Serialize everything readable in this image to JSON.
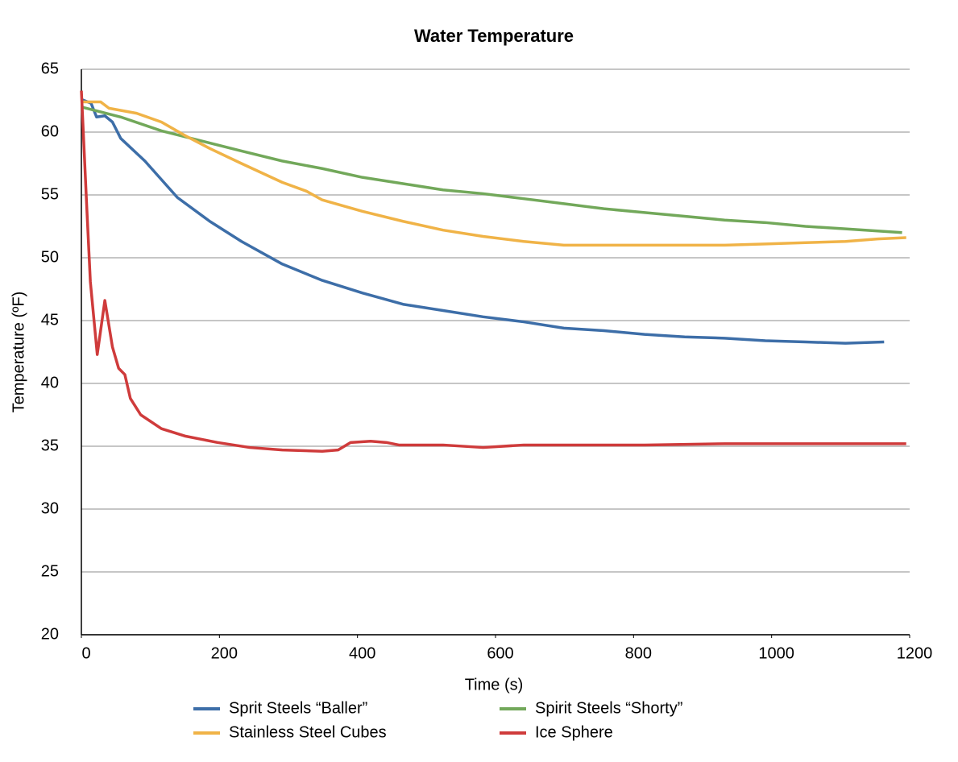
{
  "chart_data": {
    "type": "line",
    "title": "Water Temperature",
    "x_label": "Time (s)",
    "y_label": "Temperature (ºF)",
    "xlim": [
      0,
      1200
    ],
    "xticks": [
      0,
      200,
      400,
      600,
      800,
      1000,
      1200
    ],
    "ylim": [
      20,
      65
    ],
    "yticks": [
      20,
      25,
      30,
      35,
      40,
      45,
      50,
      55,
      60,
      65
    ],
    "grid": true,
    "legend": "bottom",
    "series": [
      {
        "name": "Sprit Steels “Baller”",
        "color": "#3d6ea8",
        "x": [
          0,
          14,
          22,
          34,
          45,
          57,
          92,
          139,
          186,
          232,
          291,
          349,
          407,
          466,
          524,
          582,
          641,
          699,
          757,
          816,
          874,
          932,
          991,
          1049,
          1107,
          1163
        ],
        "values": [
          62.6,
          62.3,
          61.2,
          61.3,
          60.8,
          59.5,
          57.7,
          54.8,
          52.9,
          51.3,
          49.5,
          48.2,
          47.2,
          46.3,
          45.8,
          45.3,
          44.9,
          44.4,
          44.2,
          43.9,
          43.7,
          43.6,
          43.4,
          43.3,
          43.2,
          43.3
        ]
      },
      {
        "name": "Spirit Steels “Shorty”",
        "color": "#72a85a",
        "x": [
          0,
          57,
          116,
          174,
          232,
          291,
          349,
          407,
          466,
          524,
          582,
          641,
          699,
          757,
          816,
          874,
          932,
          991,
          1049,
          1107,
          1189
        ],
        "values": [
          62.0,
          61.2,
          60.1,
          59.3,
          58.5,
          57.7,
          57.1,
          56.4,
          55.9,
          55.4,
          55.1,
          54.7,
          54.3,
          53.9,
          53.6,
          53.3,
          53.0,
          52.8,
          52.5,
          52.3,
          52.0
        ]
      },
      {
        "name": "Stainless Steel Cubes",
        "color": "#f0b347",
        "x": [
          0,
          22,
          28,
          40,
          80,
          116,
          151,
          186,
          232,
          291,
          326,
          349,
          407,
          466,
          524,
          582,
          641,
          699,
          757,
          816,
          874,
          932,
          991,
          1049,
          1107,
          1154,
          1195
        ],
        "values": [
          62.4,
          62.4,
          62.4,
          61.9,
          61.5,
          60.8,
          59.7,
          58.7,
          57.5,
          56.0,
          55.3,
          54.6,
          53.7,
          52.9,
          52.2,
          51.7,
          51.3,
          51.0,
          51.0,
          51.0,
          51.0,
          51.0,
          51.1,
          51.2,
          51.3,
          51.5,
          51.6
        ]
      },
      {
        "name": "Ice Sphere",
        "color": "#cf3b3b",
        "x": [
          0,
          8,
          13,
          23,
          34,
          45,
          54,
          63,
          71,
          86,
          116,
          151,
          197,
          244,
          291,
          349,
          372,
          390,
          419,
          442,
          460,
          524,
          582,
          641,
          699,
          816,
          932,
          1049,
          1195
        ],
        "values": [
          63.3,
          53.8,
          48.1,
          42.3,
          46.6,
          42.9,
          41.2,
          40.7,
          38.8,
          37.5,
          36.4,
          35.8,
          35.3,
          34.9,
          34.7,
          34.6,
          34.7,
          35.3,
          35.4,
          35.3,
          35.1,
          35.1,
          34.9,
          35.1,
          35.1,
          35.1,
          35.2,
          35.2,
          35.2
        ]
      }
    ]
  }
}
